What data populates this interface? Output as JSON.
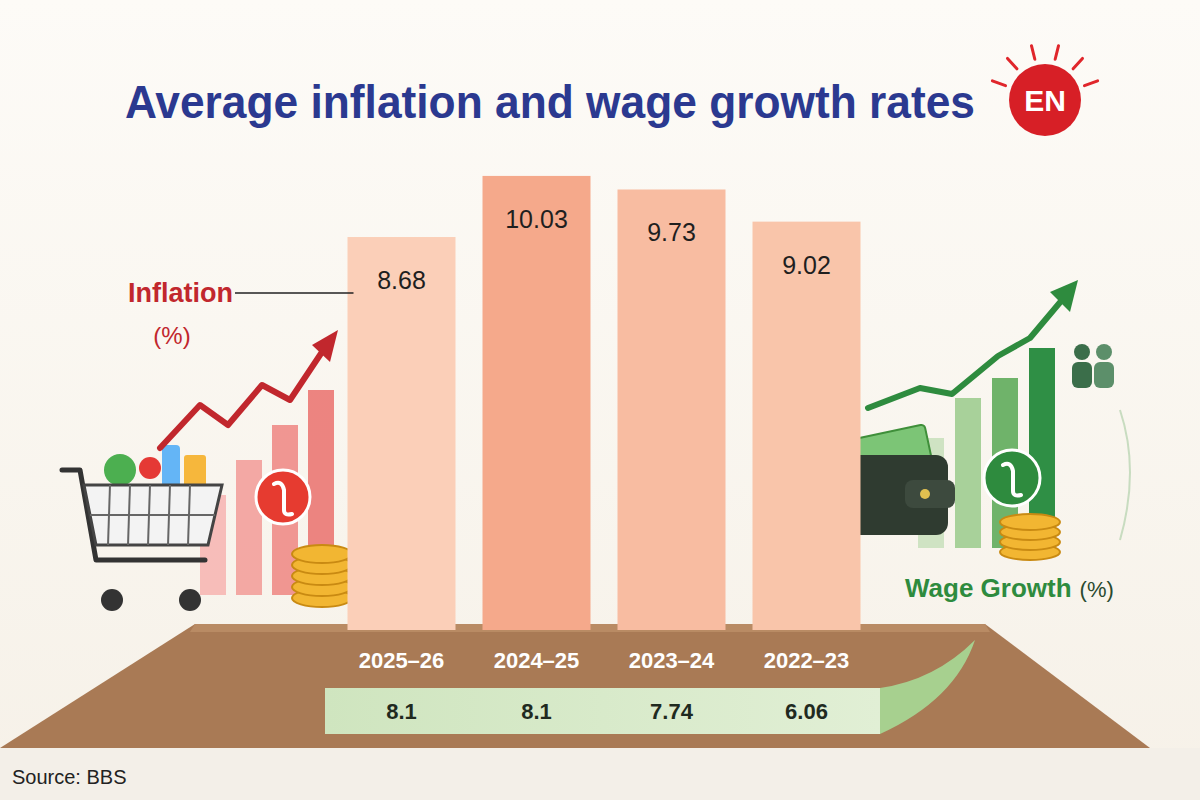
{
  "chart_data": {
    "type": "bar",
    "title": "Average inflation and wage growth rates",
    "logo": "EN",
    "source": "Source: BBS",
    "categories": [
      "2025–26",
      "2024–25",
      "2023–24",
      "2022–23"
    ],
    "series": [
      {
        "name": "Inflation",
        "unit": "(%)",
        "type": "bar",
        "color": "#c1272d",
        "colors": [
          "#fbcfb8",
          "#f5a98b",
          "#f8bca1",
          "#f9c5aa"
        ],
        "values": [
          8.68,
          10.03,
          9.73,
          9.02
        ]
      },
      {
        "name": "Wage Growth",
        "unit": "(%)",
        "type": "table",
        "color": "#2e8b3e",
        "values": [
          8.1,
          8.1,
          7.74,
          6.06
        ]
      }
    ],
    "ylim": [
      0,
      11
    ],
    "data_labels": true,
    "tick_labels": false,
    "grid": false
  }
}
